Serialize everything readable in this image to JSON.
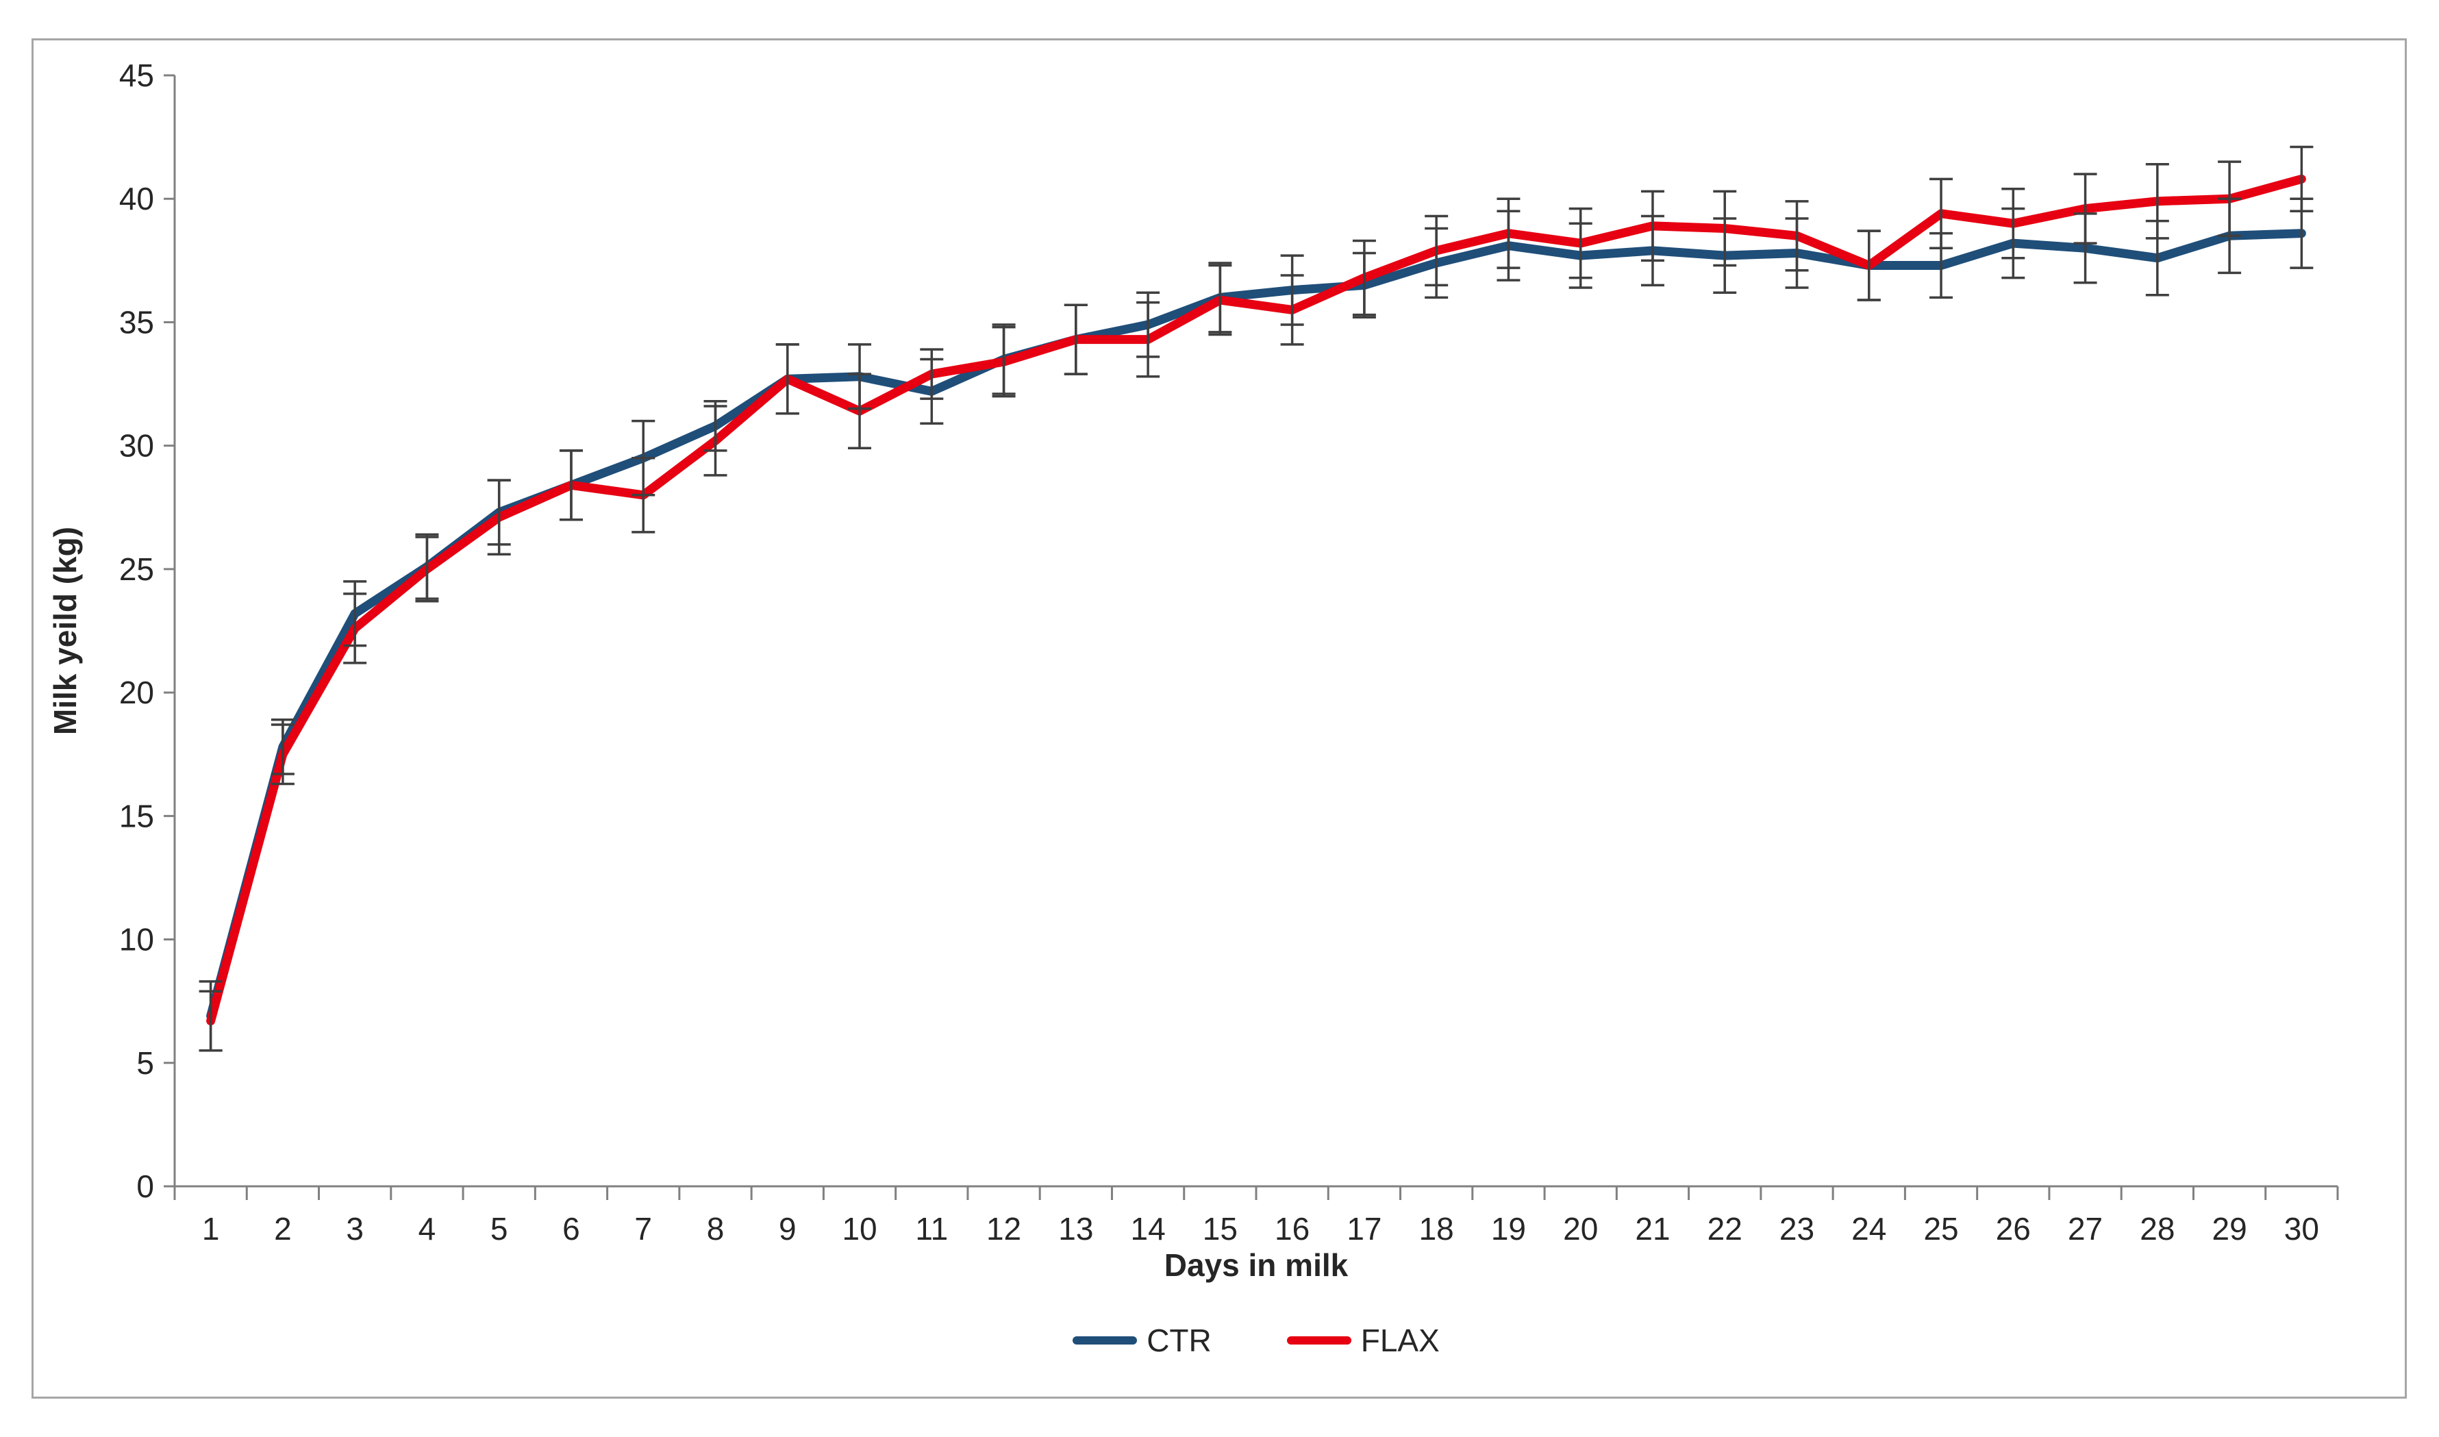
{
  "figure": {
    "background": "#ffffff",
    "frame_color": "#a6a6a6"
  },
  "chart_data": {
    "type": "line",
    "title": "",
    "xlabel": "Days in milk",
    "ylabel": "Milk yeild (kg)",
    "categories": [
      1,
      2,
      3,
      4,
      5,
      6,
      7,
      8,
      9,
      10,
      11,
      12,
      13,
      14,
      15,
      16,
      17,
      18,
      19,
      20,
      21,
      22,
      23,
      24,
      25,
      26,
      27,
      28,
      29,
      30
    ],
    "series": [
      {
        "name": "CTR",
        "color": "#1F4E79",
        "values": [
          6.9,
          17.8,
          23.2,
          25.1,
          27.3,
          28.4,
          29.5,
          30.8,
          32.7,
          32.8,
          32.2,
          33.5,
          34.3,
          34.9,
          36.0,
          36.3,
          36.5,
          37.4,
          38.1,
          37.7,
          37.9,
          37.7,
          37.8,
          37.3,
          37.3,
          38.2,
          38.0,
          37.6,
          38.5,
          38.6
        ],
        "error": [
          1.4,
          1.1,
          1.3,
          1.3,
          1.3,
          1.4,
          1.5,
          1.0,
          1.4,
          1.3,
          1.3,
          1.4,
          1.4,
          1.3,
          1.4,
          1.4,
          1.3,
          1.4,
          1.4,
          1.3,
          1.4,
          1.5,
          1.4,
          1.4,
          1.3,
          1.4,
          1.4,
          1.5,
          1.5,
          1.4
        ]
      },
      {
        "name": "FLAX",
        "color": "#E60012",
        "values": [
          6.7,
          17.5,
          22.6,
          25.0,
          27.1,
          28.4,
          28.0,
          30.2,
          32.7,
          31.4,
          32.9,
          33.4,
          34.3,
          34.3,
          35.9,
          35.5,
          36.8,
          37.9,
          38.6,
          38.2,
          38.9,
          38.8,
          38.5,
          37.3,
          39.4,
          39.0,
          39.6,
          39.9,
          40.0,
          40.8
        ],
        "error": [
          1.2,
          1.2,
          1.4,
          1.3,
          1.5,
          1.4,
          1.5,
          1.4,
          1.4,
          1.5,
          1.0,
          1.4,
          1.4,
          1.5,
          1.4,
          1.4,
          1.5,
          1.4,
          1.4,
          1.4,
          1.4,
          1.5,
          1.4,
          1.4,
          1.4,
          1.4,
          1.4,
          1.5,
          1.5,
          1.3
        ]
      }
    ],
    "ylim": [
      0,
      45
    ],
    "ytick_step": 5,
    "grid": false,
    "legend_position": "bottom",
    "error_bar_color": "#3f3f3f",
    "axis_color": "#808080",
    "text_color": "#262626",
    "tick_font_size": 46
  }
}
